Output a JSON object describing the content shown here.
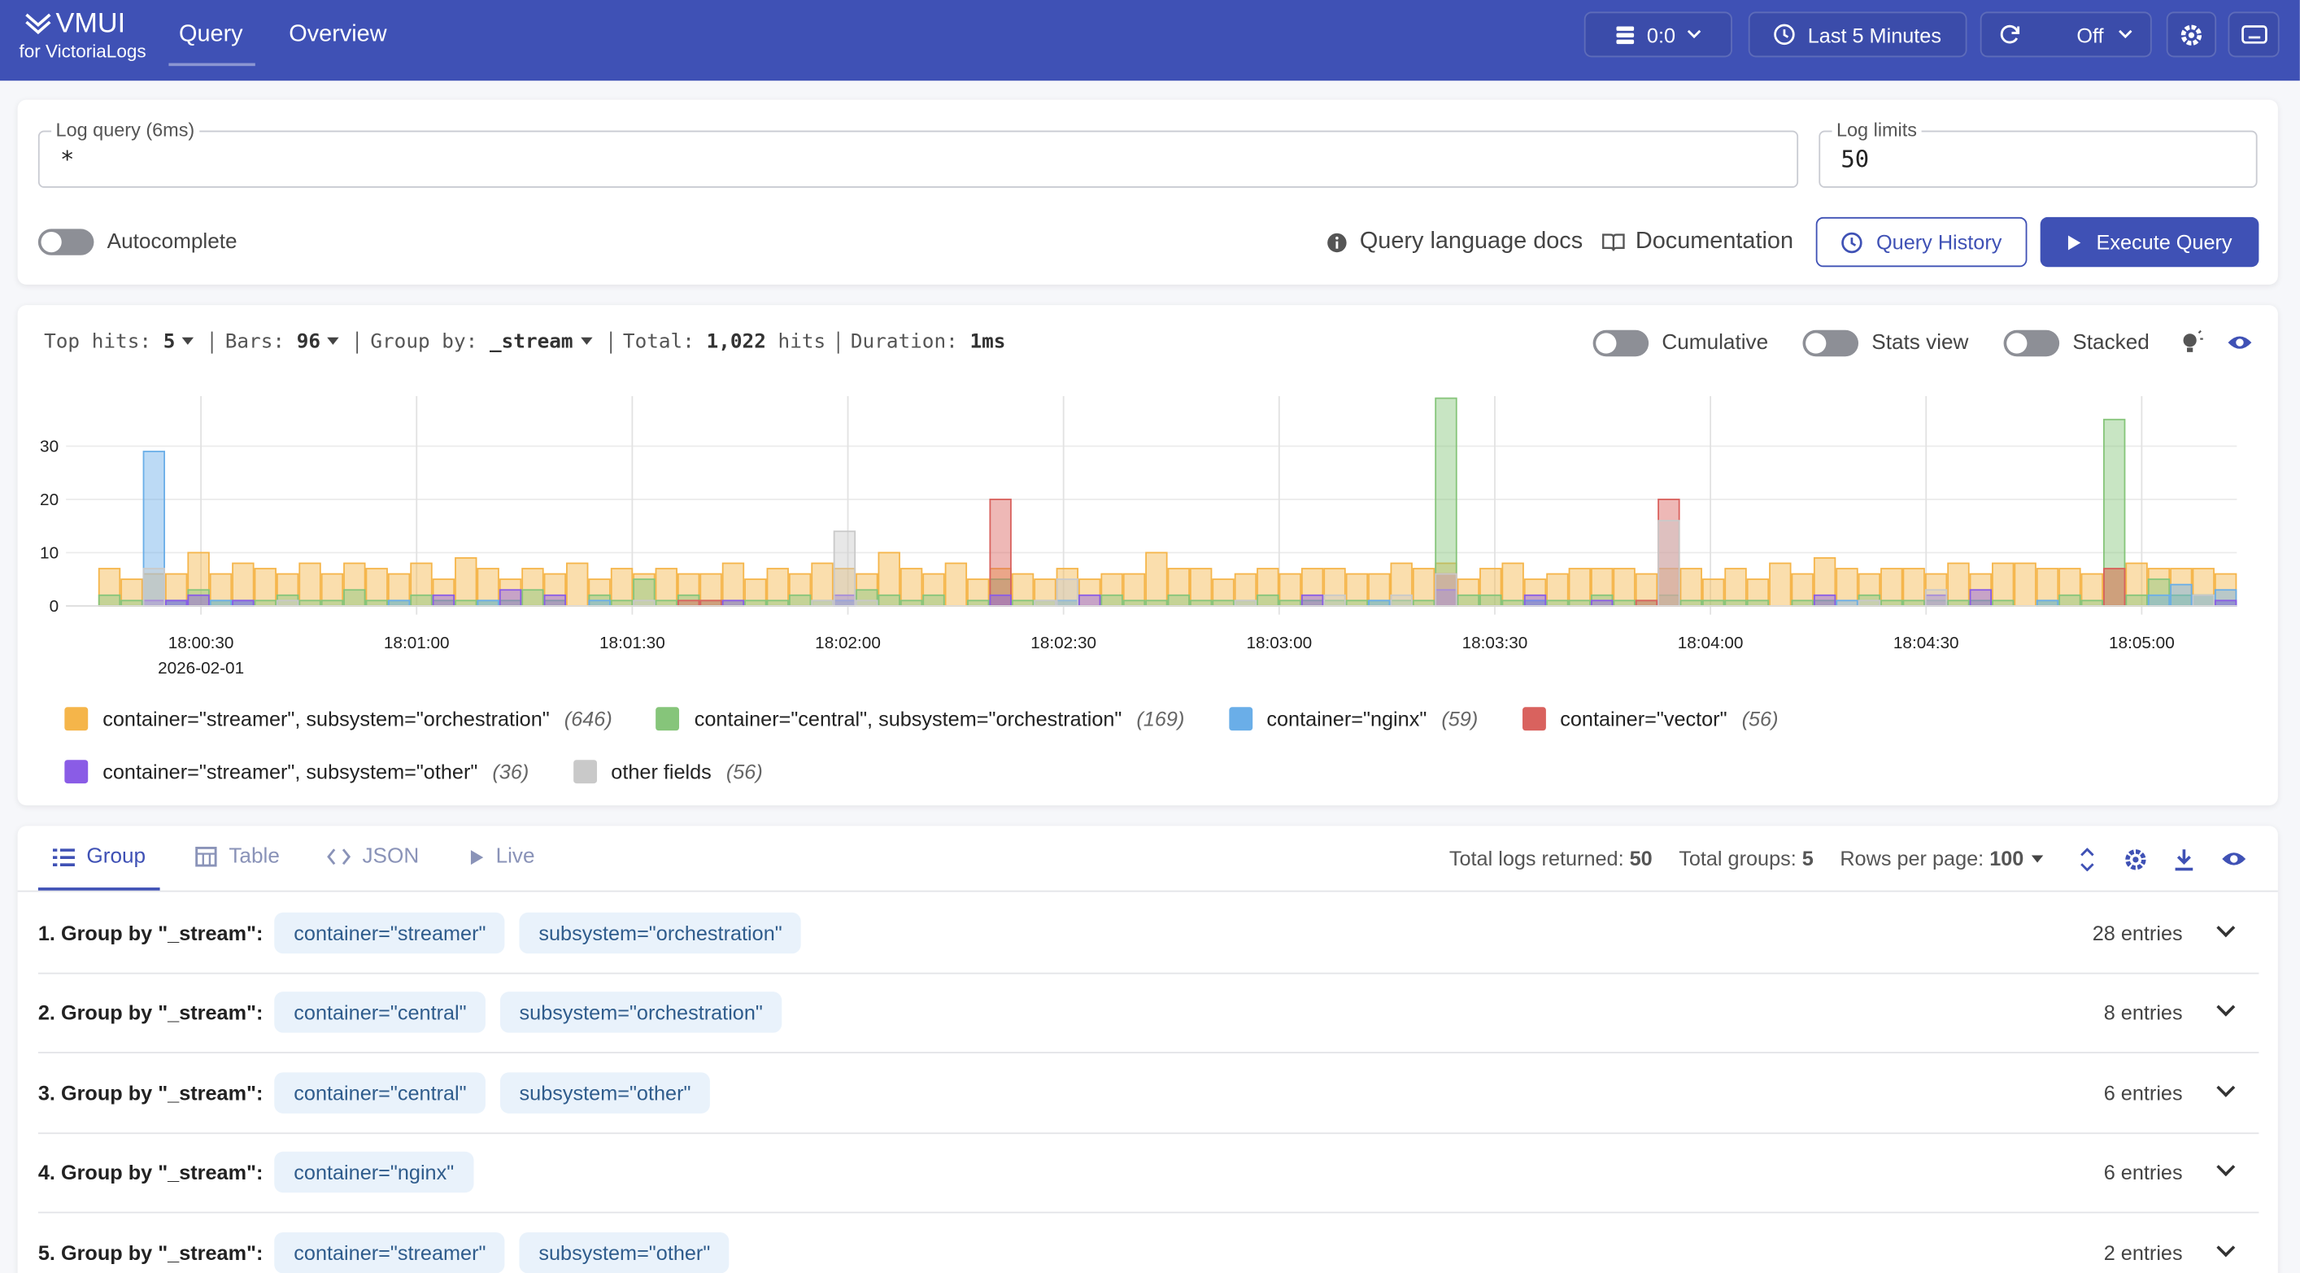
{
  "header": {
    "logo": "VMUI",
    "logo_sub": "for VictoriaLogs",
    "tabs": [
      "Query",
      "Overview"
    ],
    "tenant": "0:0",
    "time_range": "Last 5 Minutes",
    "refresh": "Off"
  },
  "query": {
    "label": "Log query (6ms)",
    "value": "*",
    "limits_label": "Log limits",
    "limits_value": "50",
    "autocomplete": "Autocomplete",
    "docs": "Query language docs",
    "documentation": "Documentation",
    "history": "Query History",
    "execute": "Execute Query"
  },
  "stats": {
    "top_hits_label": "Top hits:",
    "top_hits": "5",
    "bars_label": "Bars:",
    "bars": "96",
    "group_by_label": "Group by:",
    "group_by": "_stream",
    "total_label": "Total:",
    "total": "1,022",
    "total_unit": "hits",
    "duration_label": "Duration:",
    "duration": "1ms",
    "toggles": [
      "Cumulative",
      "Stats view",
      "Stacked"
    ]
  },
  "chart_data": {
    "type": "bar",
    "stacked": false,
    "grid": true,
    "categories": [
      null,
      null,
      null,
      null,
      null,
      null,
      null,
      null,
      null,
      null,
      null,
      null,
      null,
      null,
      null,
      null,
      null,
      null,
      null,
      null,
      null,
      null,
      null,
      null,
      null,
      null,
      null,
      null,
      null,
      null,
      null,
      null,
      null,
      null,
      null,
      null,
      null,
      null,
      null,
      null,
      null,
      null,
      null,
      null,
      null,
      null,
      null,
      null,
      null,
      null,
      null,
      null,
      null,
      null,
      null,
      null,
      null,
      null,
      null,
      null,
      null,
      null,
      null,
      null,
      null,
      null,
      null,
      null,
      null,
      null,
      null,
      null,
      null,
      null,
      null,
      null,
      null,
      null,
      null,
      null,
      null,
      null,
      null,
      null,
      null,
      null,
      null,
      null,
      null,
      null,
      null,
      null,
      null,
      null,
      null,
      null
    ],
    "xlim": [
      0,
      96
    ],
    "xticks": [
      {
        "value": 4.61,
        "label": "18:00:30"
      },
      {
        "value": 14.29,
        "label": "18:01:00"
      },
      {
        "value": 23.97,
        "label": "18:01:30"
      },
      {
        "value": 33.65,
        "label": "18:02:00"
      },
      {
        "value": 43.33,
        "label": "18:02:30"
      },
      {
        "value": 53.01,
        "label": "18:03:00"
      },
      {
        "value": 62.69,
        "label": "18:03:30"
      },
      {
        "value": 72.37,
        "label": "18:04:00"
      },
      {
        "value": 82.05,
        "label": "18:04:30"
      },
      {
        "value": 91.73,
        "label": "18:05:00"
      }
    ],
    "x_date_label": "2026-02-01",
    "ylim": [
      0,
      39.4
    ],
    "yticks": [
      0,
      10,
      20,
      30
    ],
    "series": [
      {
        "name": "container=\"streamer\", subsystem=\"orchestration\"",
        "total": "(646)",
        "color": "#f5b54a",
        "values": [
          7,
          5,
          6,
          6,
          10,
          6,
          8,
          7,
          6,
          8,
          6,
          8,
          7,
          6,
          8,
          5,
          9,
          7,
          5,
          7,
          6,
          8,
          5,
          7,
          6,
          7,
          6,
          6,
          8,
          5,
          7,
          6,
          8,
          7,
          6,
          10,
          7,
          6,
          8,
          5,
          7,
          6,
          5,
          7,
          5,
          6,
          6,
          10,
          7,
          7,
          5,
          6,
          7,
          6,
          7,
          7,
          6,
          6,
          8,
          7,
          8,
          5,
          7,
          8,
          5,
          6,
          7,
          7,
          7,
          6,
          7,
          7,
          5,
          7,
          5,
          8,
          6,
          9,
          7,
          6,
          7,
          7,
          6,
          8,
          6,
          8,
          8,
          7,
          7,
          6,
          7,
          8,
          7,
          7,
          7,
          6
        ]
      },
      {
        "name": "container=\"central\", subsystem=\"orchestration\"",
        "total": "(169)",
        "color": "#86c57a",
        "values": [
          2,
          1,
          0,
          1,
          3,
          1,
          1,
          1,
          2,
          1,
          1,
          3,
          1,
          1,
          2,
          1,
          1,
          1,
          1,
          3,
          1,
          0,
          2,
          1,
          5,
          1,
          2,
          1,
          1,
          1,
          1,
          2,
          1,
          1,
          3,
          2,
          1,
          2,
          0,
          1,
          5,
          1,
          1,
          1,
          0,
          2,
          1,
          1,
          2,
          1,
          1,
          1,
          2,
          1,
          1,
          1,
          1,
          1,
          1,
          1,
          39,
          2,
          2,
          1,
          1,
          1,
          1,
          2,
          1,
          1,
          2,
          1,
          1,
          1,
          1,
          0,
          1,
          1,
          0,
          2,
          1,
          1,
          1,
          1,
          1,
          1,
          0,
          1,
          2,
          1,
          35,
          2,
          5,
          2,
          2,
          1
        ]
      },
      {
        "name": "container=\"nginx\"",
        "total": "(59)",
        "color": "#6aaee8",
        "values": [
          0,
          0,
          29,
          1,
          0,
          1,
          1,
          0,
          0,
          0,
          0,
          0,
          0,
          1,
          0,
          0,
          0,
          1,
          0,
          0,
          0,
          0,
          1,
          0,
          0,
          0,
          0,
          0,
          0,
          0,
          0,
          0,
          0,
          1,
          0,
          0,
          0,
          0,
          0,
          0,
          0,
          0,
          0,
          1,
          0,
          0,
          0,
          0,
          0,
          0,
          0,
          0,
          0,
          0,
          0,
          0,
          0,
          1,
          0,
          0,
          0,
          0,
          0,
          0,
          1,
          0,
          0,
          0,
          0,
          0,
          0,
          0,
          0,
          0,
          0,
          0,
          0,
          0,
          1,
          0,
          0,
          0,
          0,
          0,
          0,
          0,
          0,
          1,
          0,
          0,
          0,
          0,
          2,
          4,
          2,
          3
        ]
      },
      {
        "name": "container=\"vector\"",
        "total": "(56)",
        "color": "#d9625e",
        "values": [
          0,
          0,
          0,
          0,
          0,
          0,
          0,
          0,
          0,
          0,
          0,
          0,
          0,
          0,
          0,
          0,
          0,
          0,
          0,
          0,
          0,
          0,
          0,
          0,
          0,
          0,
          1,
          1,
          0,
          0,
          0,
          0,
          0,
          0,
          0,
          0,
          0,
          0,
          0,
          0,
          20,
          0,
          0,
          0,
          0,
          0,
          0,
          0,
          0,
          0,
          0,
          0,
          0,
          0,
          0,
          0,
          0,
          0,
          0,
          0,
          6,
          0,
          0,
          0,
          0,
          0,
          0,
          0,
          0,
          1,
          20,
          0,
          0,
          0,
          0,
          0,
          0,
          0,
          0,
          0,
          0,
          0,
          0,
          0,
          0,
          0,
          0,
          0,
          0,
          0,
          7,
          0,
          0,
          0,
          0,
          0
        ]
      },
      {
        "name": "container=\"streamer\", subsystem=\"other\"",
        "total": "(36)",
        "color": "#8a5ce6",
        "values": [
          0,
          0,
          1,
          1,
          2,
          0,
          1,
          0,
          0,
          0,
          0,
          0,
          0,
          0,
          0,
          2,
          0,
          0,
          3,
          0,
          2,
          0,
          0,
          0,
          0,
          0,
          0,
          0,
          1,
          0,
          0,
          0,
          0,
          2,
          0,
          0,
          0,
          0,
          0,
          0,
          2,
          0,
          0,
          0,
          2,
          0,
          0,
          0,
          0,
          0,
          0,
          0,
          0,
          0,
          2,
          0,
          0,
          0,
          0,
          0,
          3,
          0,
          0,
          0,
          2,
          0,
          0,
          1,
          0,
          0,
          0,
          0,
          0,
          0,
          0,
          0,
          0,
          2,
          0,
          0,
          0,
          0,
          2,
          0,
          3,
          0,
          0,
          0,
          0,
          0,
          0,
          0,
          0,
          0,
          0,
          1
        ]
      },
      {
        "name": "other fields",
        "total": "(56)",
        "color": "#c9c9c9",
        "values": [
          0,
          0,
          7,
          0,
          0,
          0,
          0,
          0,
          1,
          0,
          0,
          0,
          0,
          0,
          0,
          0,
          0,
          0,
          0,
          0,
          0,
          0,
          0,
          0,
          1,
          0,
          0,
          0,
          0,
          0,
          0,
          0,
          1,
          14,
          1,
          0,
          0,
          0,
          0,
          0,
          0,
          0,
          1,
          5,
          0,
          0,
          0,
          0,
          0,
          0,
          0,
          1,
          0,
          0,
          0,
          2,
          0,
          0,
          2,
          0,
          6,
          0,
          0,
          0,
          0,
          0,
          0,
          0,
          0,
          0,
          16,
          0,
          0,
          0,
          0,
          0,
          0,
          0,
          0,
          1,
          0,
          0,
          3,
          0,
          0,
          0,
          0,
          0,
          0,
          0,
          0,
          0,
          0,
          0,
          2,
          0
        ]
      }
    ]
  },
  "results": {
    "tabs": [
      "Group",
      "Table",
      "JSON",
      "Live"
    ],
    "total_logs_label": "Total logs returned:",
    "total_logs": "50",
    "total_groups_label": "Total groups:",
    "total_groups": "5",
    "rows_label": "Rows per page:",
    "rows": "100",
    "groups": [
      {
        "title": "1. Group by \"_stream\":",
        "tags": [
          "container=\"streamer\"",
          "subsystem=\"orchestration\""
        ],
        "entries": "28 entries"
      },
      {
        "title": "2. Group by \"_stream\":",
        "tags": [
          "container=\"central\"",
          "subsystem=\"orchestration\""
        ],
        "entries": "8 entries"
      },
      {
        "title": "3. Group by \"_stream\":",
        "tags": [
          "container=\"central\"",
          "subsystem=\"other\""
        ],
        "entries": "6 entries"
      },
      {
        "title": "4. Group by \"_stream\":",
        "tags": [
          "container=\"nginx\""
        ],
        "entries": "6 entries"
      },
      {
        "title": "5. Group by \"_stream\":",
        "tags": [
          "container=\"streamer\"",
          "subsystem=\"other\""
        ],
        "entries": "2 entries"
      }
    ]
  }
}
